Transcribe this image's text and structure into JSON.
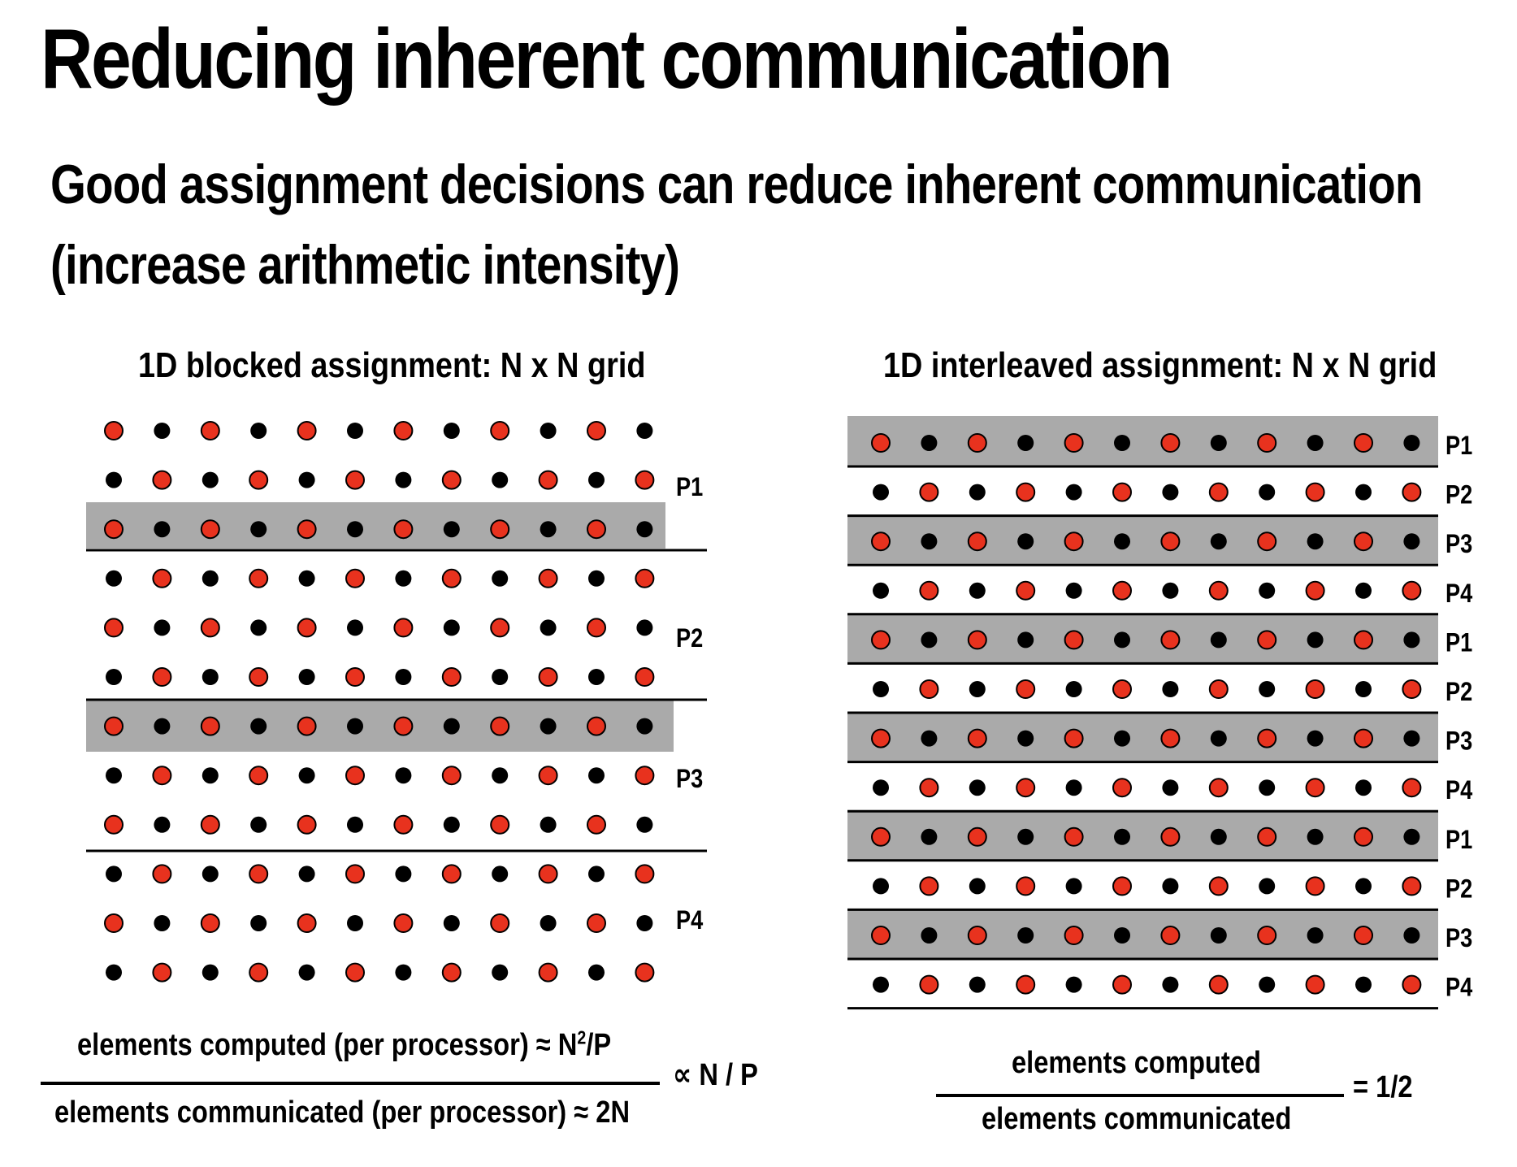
{
  "title": "Reducing inherent communication",
  "subtitle_line1": "Good assignment decisions can reduce inherent communication",
  "subtitle_line2": "(increase arithmetic intensity)",
  "left_panel": {
    "title": "1D blocked assignment: N x N grid",
    "processor_labels": [
      "P1",
      "P2",
      "P3",
      "P4"
    ],
    "formula": {
      "numerator_text": "elements computed (per processor)",
      "numerator_approx": "≈ N",
      "numerator_exp": "2",
      "numerator_tail": "/P",
      "denominator": "elements communicated (per processor)  ≈ 2N",
      "result": "∝ N / P"
    }
  },
  "right_panel": {
    "title": "1D interleaved assignment: N x N grid",
    "row_labels": [
      "P1",
      "P2",
      "P3",
      "P4",
      "P1",
      "P2",
      "P3",
      "P4",
      "P1",
      "P2",
      "P3",
      "P4"
    ],
    "formula": {
      "numerator": "elements computed",
      "denominator": "elements communicated",
      "result": "= 1/2"
    }
  },
  "colors": {
    "red_dot": "#e8321e",
    "black_dot": "#000000",
    "highlight": "#aaaaaa"
  }
}
